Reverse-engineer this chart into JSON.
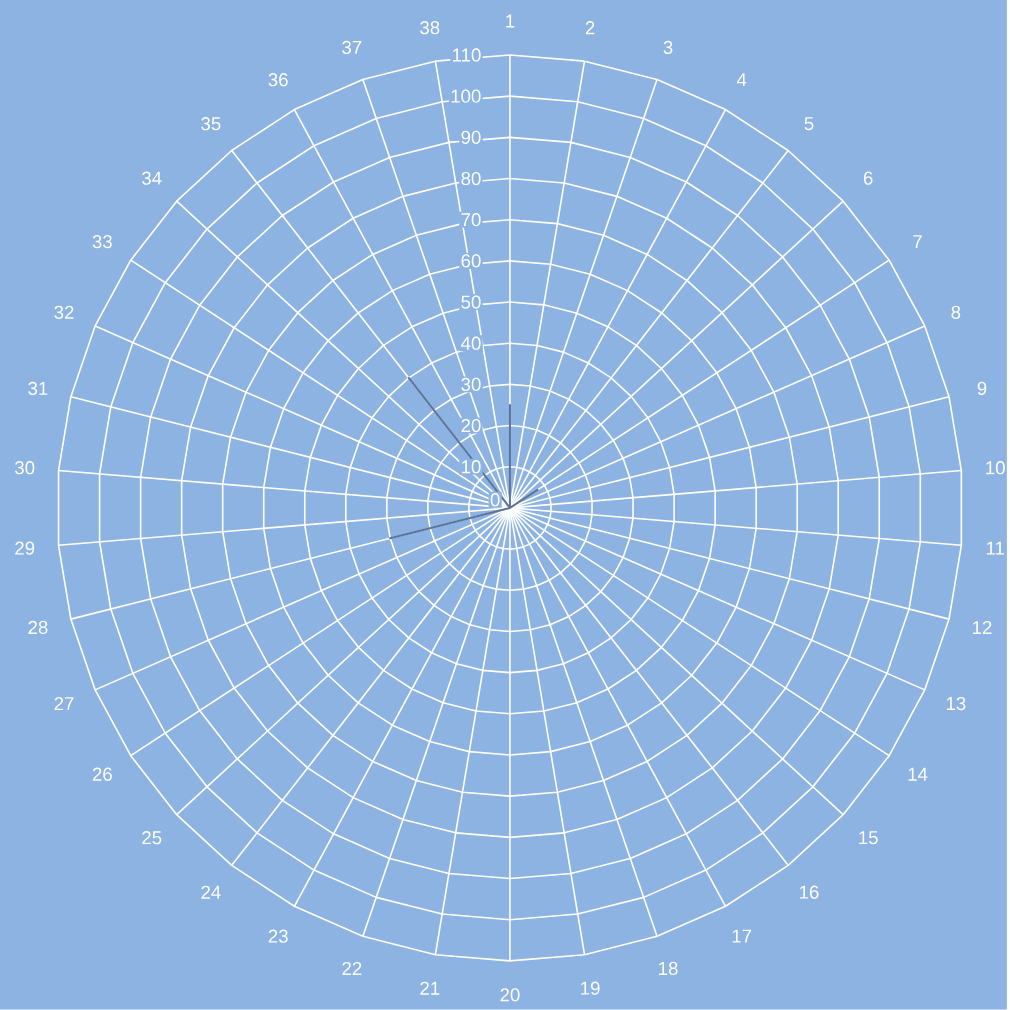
{
  "chart_data": {
    "type": "radar",
    "categories": [
      "1",
      "2",
      "3",
      "4",
      "5",
      "6",
      "7",
      "8",
      "9",
      "10",
      "11",
      "12",
      "13",
      "14",
      "15",
      "16",
      "17",
      "18",
      "19",
      "20",
      "21",
      "22",
      "23",
      "24",
      "25",
      "26",
      "27",
      "28",
      "29",
      "30",
      "31",
      "32",
      "33",
      "34",
      "35",
      "36",
      "37",
      "38"
    ],
    "series": [
      {
        "color": "#5b7499",
        "values": [
          25,
          0,
          0,
          0,
          0,
          0,
          8,
          0,
          0,
          0,
          0,
          0,
          0,
          0,
          0,
          0,
          0,
          0,
          0,
          0,
          0,
          0,
          0,
          0,
          0,
          0,
          0,
          30,
          0,
          0,
          0,
          0,
          0,
          0,
          40,
          0,
          0,
          0
        ]
      }
    ],
    "ylim": [
      0,
      110
    ],
    "yticks": [
      0,
      10,
      20,
      30,
      40,
      50,
      60,
      70,
      80,
      90,
      100,
      110
    ],
    "grid": true,
    "marker": "none",
    "line_style": "solid"
  }
}
